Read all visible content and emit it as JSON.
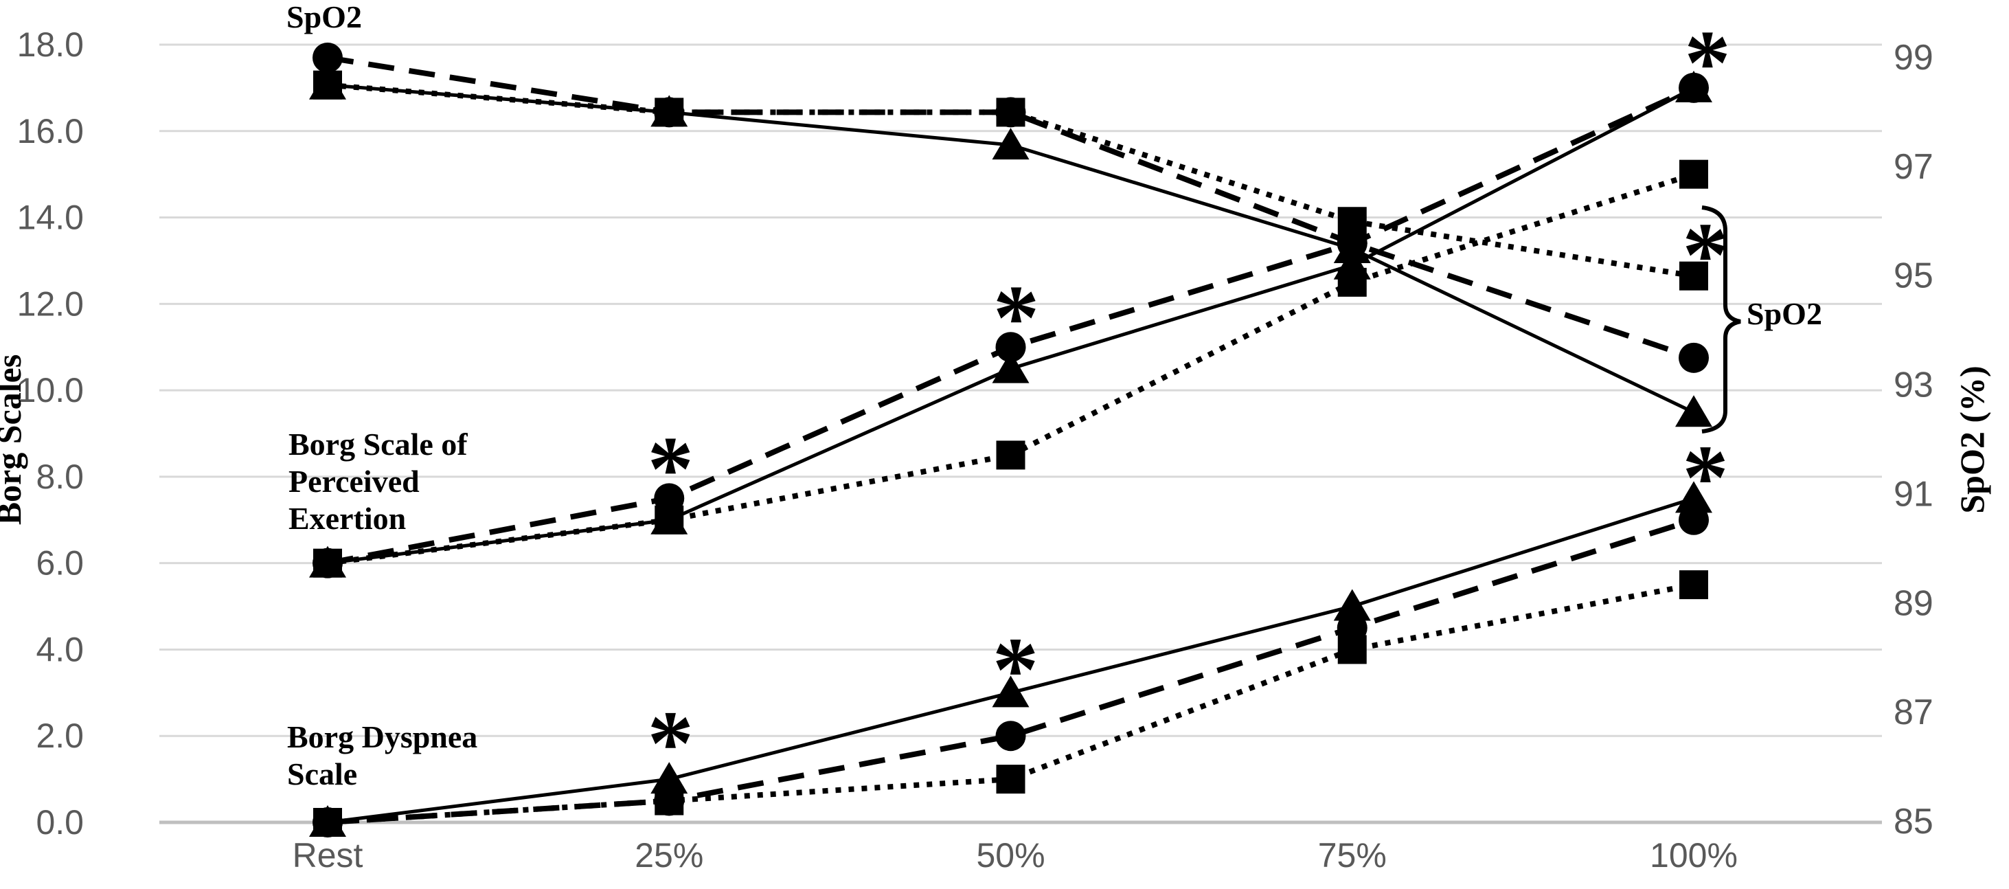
{
  "figure": {
    "background": "#ffffff",
    "grid_color": "#d9d9d9",
    "baseline_color": "#bfbfbf",
    "tick_text_color": "#595959",
    "series_color": "#000000",
    "annotation_text_color": "#000000"
  },
  "chart_data": {
    "type": "line",
    "categories": [
      "Rest",
      "25%",
      "50%",
      "75%",
      "100%"
    ],
    "left_axis": {
      "title": "Borg Scales",
      "min": 0,
      "max": 18,
      "step": 2,
      "tick_labels": [
        "18.0",
        "16.0",
        "14.0",
        "12.0",
        "10.0",
        "8.0",
        "6.0",
        "4.0",
        "2.0",
        "0.0"
      ]
    },
    "right_axis": {
      "title": "SpO2 (%)",
      "min": 85,
      "max": 99,
      "step": 2,
      "tick_labels": [
        "99",
        "97",
        "95",
        "93",
        "91",
        "89",
        "87",
        "85"
      ]
    },
    "grid": true,
    "legend": "none",
    "groups": [
      {
        "name": "SpO2",
        "axis": "right",
        "series": [
          {
            "marker": "circle",
            "line": "dashed",
            "values": [
              99.0,
              98.0,
              98.0,
              95.6,
              93.5
            ]
          },
          {
            "marker": "square",
            "line": "dotted",
            "values": [
              98.5,
              98.0,
              98.0,
              96.0,
              95.0
            ]
          },
          {
            "marker": "triangle",
            "line": "solid",
            "values": [
              98.5,
              98.0,
              97.4,
              95.5,
              92.5
            ]
          }
        ]
      },
      {
        "name": "Borg Scale of Perceived Exertion",
        "axis": "left",
        "series": [
          {
            "marker": "circle",
            "line": "dashed",
            "values": [
              6.0,
              7.5,
              11.0,
              13.4,
              17.0
            ]
          },
          {
            "marker": "square",
            "line": "dotted",
            "values": [
              6.0,
              7.0,
              8.5,
              12.5,
              15.0
            ]
          },
          {
            "marker": "triangle",
            "line": "solid",
            "values": [
              6.0,
              7.0,
              10.5,
              12.9,
              17.0
            ]
          }
        ]
      },
      {
        "name": "Borg Dyspnea Scale",
        "axis": "left",
        "series": [
          {
            "marker": "circle",
            "line": "dashed",
            "values": [
              0.0,
              0.5,
              2.0,
              4.5,
              7.0
            ]
          },
          {
            "marker": "square",
            "line": "dotted",
            "values": [
              0.0,
              0.5,
              1.0,
              4.0,
              5.5
            ]
          },
          {
            "marker": "triangle",
            "line": "solid",
            "values": [
              0.0,
              1.0,
              3.0,
              5.0,
              7.5
            ]
          }
        ]
      }
    ],
    "significance_marks": [
      {
        "symbol": "*",
        "category_index": 1,
        "left_value": 8.45,
        "dx": 2
      },
      {
        "symbol": "*",
        "category_index": 2,
        "left_value": 11.95,
        "dx": 8
      },
      {
        "symbol": "*",
        "category_index": 1,
        "left_value": 2.1,
        "dx": 2
      },
      {
        "symbol": "*",
        "category_index": 2,
        "left_value": 3.8,
        "dx": 7
      },
      {
        "symbol": "*",
        "category_index": 4,
        "left_value": 17.85,
        "dx": 20
      },
      {
        "symbol": "*",
        "category_index": 4,
        "left_value": 13.4,
        "dx": 17
      },
      {
        "symbol": "*",
        "category_index": 4,
        "left_value": 8.25,
        "dx": 17
      }
    ],
    "annotations": [
      {
        "id": "spo2-top-label",
        "text": "SpO2",
        "x": 472,
        "y": 40,
        "align": "middle",
        "line_height": 54
      },
      {
        "id": "exertion-group-label",
        "text": "Borg Scale of\nPerceived\nExertion",
        "x": 420,
        "y": 662,
        "align": "start",
        "line_height": 54
      },
      {
        "id": "dyspnea-group-label",
        "text": "Borg Dyspnea\nScale",
        "x": 418,
        "y": 1088,
        "align": "start",
        "line_height": 54
      }
    ],
    "bracket": {
      "label": "SpO2",
      "label_x": 2543,
      "label_y": 472,
      "x": 2512,
      "top_y": 302,
      "bottom_y": 628,
      "mid_y": 468
    }
  }
}
